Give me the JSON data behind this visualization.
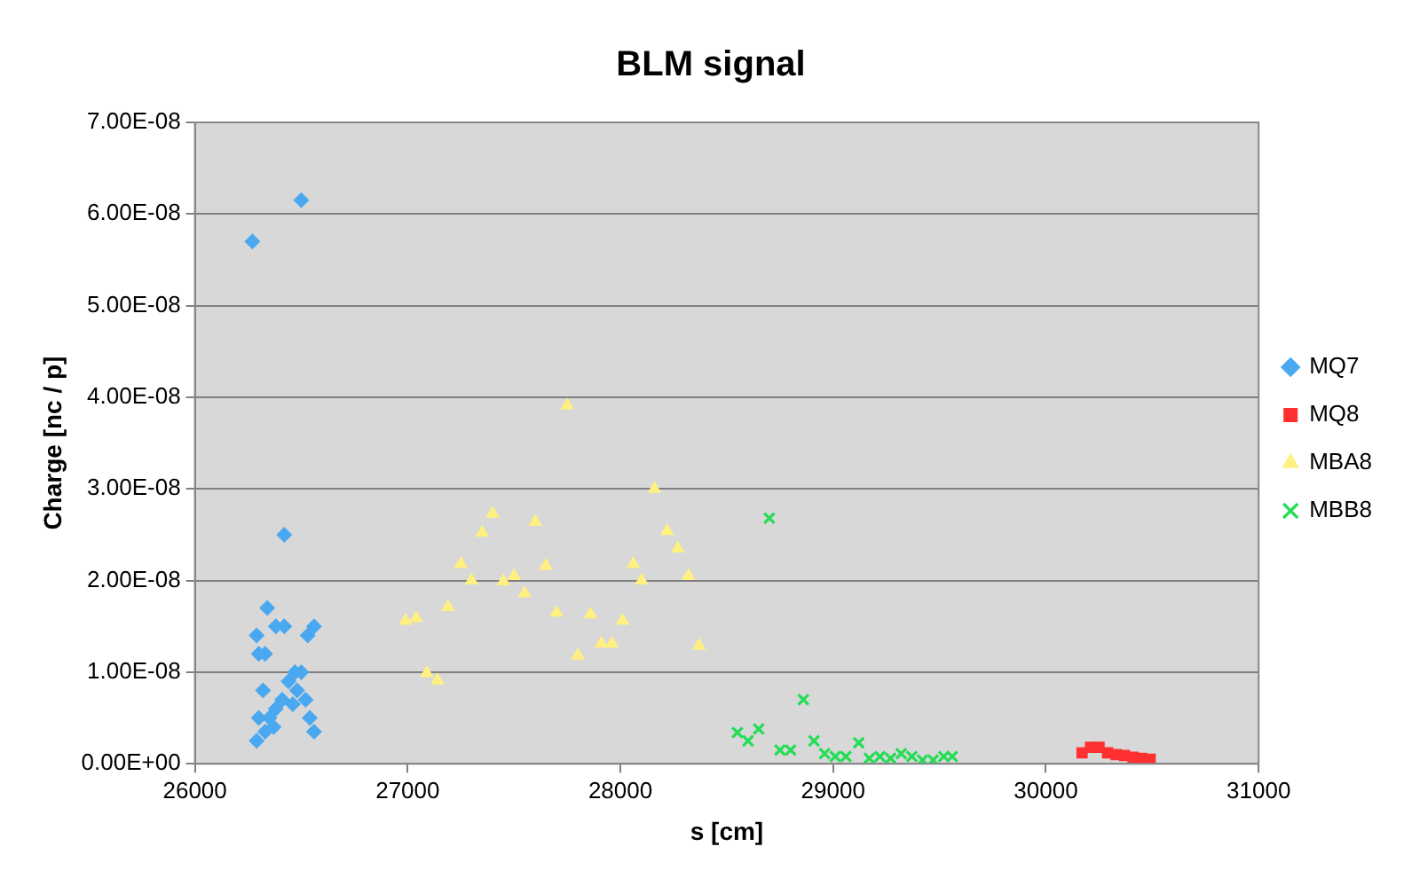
{
  "chart_data": {
    "type": "scatter",
    "title": "BLM signal",
    "xlabel": "s [cm]",
    "ylabel": "Charge [nc / p]",
    "xlim": [
      26000,
      31000
    ],
    "xticks": [
      26000,
      27000,
      28000,
      29000,
      30000,
      31000
    ],
    "ylim": [
      0,
      7e-08
    ],
    "yticks": [
      {
        "value": 0,
        "label": "0.00E+00"
      },
      {
        "value": 1e-08,
        "label": "1.00E-08"
      },
      {
        "value": 2e-08,
        "label": "2.00E-08"
      },
      {
        "value": 3e-08,
        "label": "3.00E-08"
      },
      {
        "value": 4e-08,
        "label": "4.00E-08"
      },
      {
        "value": 5e-08,
        "label": "5.00E-08"
      },
      {
        "value": 6e-08,
        "label": "6.00E-08"
      },
      {
        "value": 7e-08,
        "label": "7.00E-08"
      }
    ],
    "grid": "y",
    "legend": "right",
    "series": [
      {
        "name": "MQ7",
        "color": "#4aa8f0",
        "marker": "diamond",
        "x": [
          26270,
          26500,
          26420,
          26340,
          26290,
          26380,
          26420,
          26560,
          26530,
          26300,
          26330,
          26470,
          26500,
          26440,
          26320,
          26480,
          26410,
          26460,
          26520,
          26380,
          26350,
          26300,
          26540,
          26370,
          26330,
          26560,
          26290
        ],
        "values": [
          5.7e-08,
          6.15e-08,
          2.5e-08,
          1.7e-08,
          1.4e-08,
          1.5e-08,
          1.5e-08,
          1.5e-08,
          1.4e-08,
          1.2e-08,
          1.2e-08,
          1e-08,
          1e-08,
          9e-09,
          8e-09,
          8e-09,
          7e-09,
          6.5e-09,
          7e-09,
          6e-09,
          5e-09,
          5e-09,
          5e-09,
          4e-09,
          3.5e-09,
          3.5e-09,
          2.5e-09
        ]
      },
      {
        "name": "MQ8",
        "color": "#ff3030",
        "marker": "square",
        "x": [
          30170,
          30210,
          30250,
          30290,
          30330,
          30370,
          30410,
          30450,
          30490
        ],
        "values": [
          1.2e-09,
          1.8e-09,
          1.8e-09,
          1.2e-09,
          1e-09,
          9e-10,
          7e-10,
          6e-10,
          5e-10
        ]
      },
      {
        "name": "MBA8",
        "color": "#fff080",
        "marker": "triangle",
        "x": [
          26990,
          27040,
          27190,
          27090,
          27140,
          27250,
          27300,
          27350,
          27400,
          27450,
          27500,
          27550,
          27600,
          27650,
          27700,
          27750,
          27800,
          27860,
          27910,
          27960,
          28010,
          28060,
          28100,
          28160,
          28220,
          28270,
          28320,
          28370
        ],
        "values": [
          1.56e-08,
          1.59e-08,
          1.71e-08,
          9.9e-09,
          9.1e-09,
          2.18e-08,
          2e-08,
          2.52e-08,
          2.73e-08,
          1.99e-08,
          2.05e-08,
          1.86e-08,
          2.64e-08,
          2.16e-08,
          1.65e-08,
          3.91e-08,
          1.18e-08,
          1.63e-08,
          1.31e-08,
          1.31e-08,
          1.56e-08,
          2.18e-08,
          2e-08,
          3e-08,
          2.54e-08,
          2.35e-08,
          2.05e-08,
          1.29e-08
        ]
      },
      {
        "name": "MBB8",
        "color": "#22dd55",
        "marker": "cross",
        "x": [
          28700,
          28860,
          28550,
          28600,
          28650,
          28750,
          28800,
          28910,
          28960,
          29010,
          29060,
          29120,
          29170,
          29220,
          29270,
          29320,
          29370,
          29420,
          29470,
          29520,
          29560
        ],
        "values": [
          2.68e-08,
          7e-09,
          3.4e-09,
          2.5e-09,
          3.8e-09,
          1.5e-09,
          1.5e-09,
          2.5e-09,
          1.1e-09,
          8e-10,
          8e-10,
          2.3e-09,
          6e-10,
          8e-10,
          6e-10,
          1.1e-09,
          8e-10,
          4e-10,
          4e-10,
          8e-10,
          8e-10
        ]
      }
    ]
  }
}
